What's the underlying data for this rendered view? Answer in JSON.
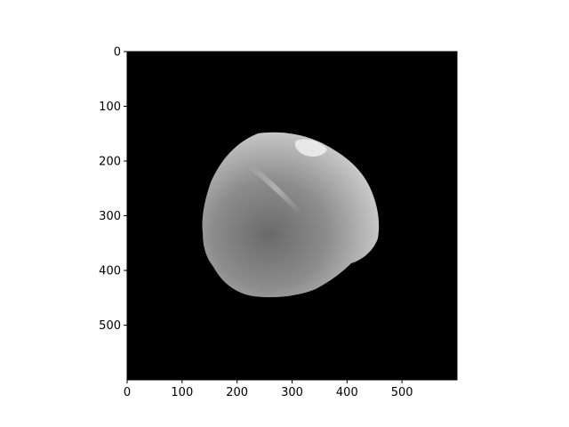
{
  "figure": {
    "background_color": "#ffffff",
    "image": {
      "description": "grayscale rendering of a roughly spherical object on black background",
      "background_color": "#000000",
      "colormap": "gray"
    },
    "axes": {
      "xlim": [
        0,
        600
      ],
      "ylim": [
        600,
        0
      ],
      "x_ticks": [
        0,
        100,
        200,
        300,
        400,
        500
      ],
      "y_ticks": [
        0,
        100,
        200,
        300,
        400,
        500
      ],
      "x_tick_labels": [
        "0",
        "100",
        "200",
        "300",
        "400",
        "500"
      ],
      "y_tick_labels": [
        "0",
        "100",
        "200",
        "300",
        "400",
        "500"
      ]
    }
  }
}
